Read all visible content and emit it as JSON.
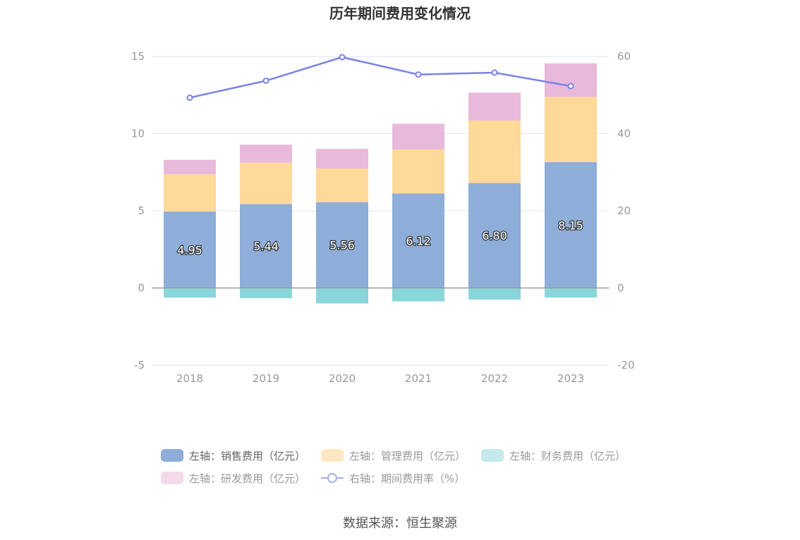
{
  "chart_data": {
    "type": "bar",
    "title": "历年期间费用变化情况",
    "categories": [
      "2018",
      "2019",
      "2020",
      "2021",
      "2022",
      "2023"
    ],
    "stacked": true,
    "series": [
      {
        "name": "左轴：销售费用（亿元）",
        "axis": "left",
        "type": "bar",
        "color": "#8eadd9",
        "values": [
          4.95,
          5.44,
          5.56,
          6.12,
          6.8,
          8.15
        ],
        "labels": [
          "4.95",
          "5.44",
          "5.56",
          "6.12",
          "6.80",
          "8.15"
        ]
      },
      {
        "name": "左轴：管理费用（亿元）",
        "axis": "left",
        "type": "bar",
        "color": "#ffd99a",
        "values": [
          2.42,
          2.67,
          2.18,
          2.85,
          4.05,
          4.23
        ]
      },
      {
        "name": "左轴：财务费用（亿元）",
        "axis": "left",
        "type": "bar",
        "color": "#88d6d9",
        "values": [
          -0.62,
          -0.66,
          -1.0,
          -0.87,
          -0.75,
          -0.62
        ]
      },
      {
        "name": "左轴：研发费用（亿元）",
        "axis": "left",
        "type": "bar",
        "color": "#e8b9da",
        "values": [
          0.93,
          1.17,
          1.27,
          1.67,
          1.8,
          2.17
        ]
      },
      {
        "name": "右轴：期间费用率（%）",
        "axis": "right",
        "type": "line",
        "color": "#7b82e8",
        "values": [
          49.3,
          53.7,
          59.8,
          55.3,
          55.8,
          52.3
        ]
      }
    ],
    "y_left": {
      "ylim": [
        -5,
        15
      ],
      "ticks": [
        -5,
        0,
        5,
        10,
        15
      ],
      "tick_labels": [
        "-5",
        "0",
        "5",
        "10",
        "15"
      ]
    },
    "y_right": {
      "ylim": [
        -20,
        60
      ],
      "ticks": [
        -20,
        0,
        20,
        40,
        60
      ],
      "tick_labels": [
        "-20",
        "0",
        "20",
        "40",
        "60"
      ]
    },
    "grid": true,
    "legend_position": "bottom"
  },
  "legend": {
    "items": [
      {
        "label": "左轴：销售费用（亿元）",
        "color": "#8eadd9",
        "kind": "bar",
        "dim": false
      },
      {
        "label": "左轴：管理费用（亿元）",
        "color": "#ffe7c2",
        "kind": "bar",
        "dim": true
      },
      {
        "label": "左轴：财务费用（亿元）",
        "color": "#c4eaeb",
        "kind": "bar",
        "dim": true
      },
      {
        "label": "左轴：研发费用（亿元）",
        "color": "#f3d9ea",
        "kind": "bar",
        "dim": true
      },
      {
        "label": "右轴：期间费用率（%）",
        "color": "#a9aef0",
        "kind": "line",
        "dim": true
      }
    ]
  },
  "source": "数据来源：恒生聚源"
}
